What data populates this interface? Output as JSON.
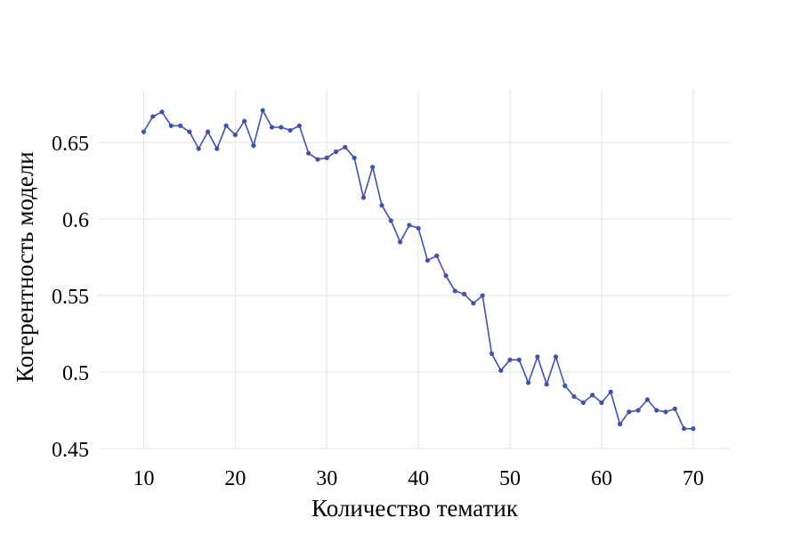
{
  "chart_data": {
    "type": "line",
    "xlabel": "Количество тематик",
    "ylabel": "Когерентность модели",
    "xlim": [
      5,
      74
    ],
    "ylim": [
      0.45,
      0.685
    ],
    "x_ticks": [
      10,
      20,
      30,
      40,
      50,
      60,
      70
    ],
    "x_tick_labels": [
      "10",
      "20",
      "30",
      "40",
      "50",
      "60",
      "70"
    ],
    "y_ticks": [
      0.45,
      0.5,
      0.55,
      0.6,
      0.65
    ],
    "y_tick_labels": [
      "0.45",
      "0.5",
      "0.55",
      "0.6",
      "0.65"
    ],
    "grid": true,
    "line_color": "#3f51b5",
    "grid_color": "#e3e3e3",
    "x": [
      10,
      11,
      12,
      13,
      14,
      15,
      16,
      17,
      18,
      19,
      20,
      21,
      22,
      23,
      24,
      25,
      26,
      27,
      28,
      29,
      30,
      31,
      32,
      33,
      34,
      35,
      36,
      37,
      38,
      39,
      40,
      41,
      42,
      43,
      44,
      45,
      46,
      47,
      48,
      49,
      50,
      51,
      52,
      53,
      54,
      55,
      56,
      57,
      58,
      59,
      60,
      61,
      62,
      63,
      64,
      65,
      66,
      67,
      68,
      69,
      70
    ],
    "y": [
      0.657,
      0.667,
      0.67,
      0.661,
      0.661,
      0.657,
      0.646,
      0.657,
      0.646,
      0.661,
      0.655,
      0.664,
      0.648,
      0.671,
      0.66,
      0.66,
      0.658,
      0.661,
      0.643,
      0.639,
      0.64,
      0.644,
      0.647,
      0.64,
      0.614,
      0.634,
      0.609,
      0.599,
      0.585,
      0.596,
      0.594,
      0.573,
      0.576,
      0.563,
      0.553,
      0.551,
      0.545,
      0.55,
      0.512,
      0.501,
      0.508,
      0.508,
      0.493,
      0.51,
      0.492,
      0.51,
      0.491,
      0.484,
      0.48,
      0.485,
      0.48,
      0.487,
      0.466,
      0.474,
      0.475,
      0.482,
      0.475,
      0.474,
      0.476,
      0.463,
      0.463
    ]
  }
}
